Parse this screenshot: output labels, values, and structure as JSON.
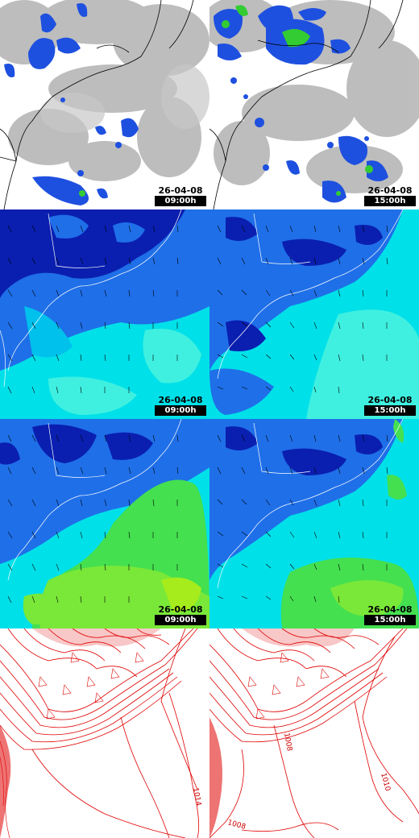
{
  "panels": [
    {
      "row": "cloud",
      "date": "26-04-08",
      "time": "09:00h"
    },
    {
      "row": "cloud",
      "date": "26-04-08",
      "time": "15:00h"
    },
    {
      "row": "humidity",
      "date": "26-04-08",
      "time": "09:00h"
    },
    {
      "row": "humidity",
      "date": "26-04-08",
      "time": "15:00h"
    },
    {
      "row": "humidity2",
      "date": "26-04-08",
      "time": "09:00h"
    },
    {
      "row": "humidity2",
      "date": "26-04-08",
      "time": "15:00h"
    },
    {
      "row": "pressure"
    },
    {
      "row": "pressure"
    }
  ],
  "isobars": {
    "left": [
      "1014"
    ],
    "right": [
      "1008",
      "1010",
      "1008"
    ]
  },
  "colors": {
    "cloud_gray": "#9a9a9a",
    "precip_blue": "#1e50e0",
    "precip_green": "#33cc33",
    "hum_dark": "#0a1fb0",
    "hum_mid": "#1f6fe8",
    "hum_light": "#00e0e8",
    "hum_green": "#44e050",
    "isobar": "#e00000"
  }
}
